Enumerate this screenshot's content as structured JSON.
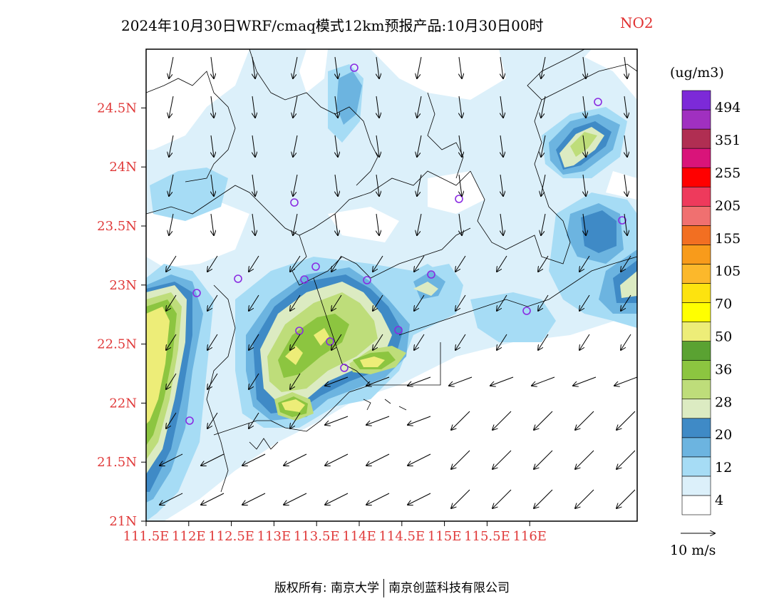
{
  "title": {
    "text": "2024年10月30日WRF/cmaq模式12km预报产品:10月30日00时",
    "species": "NO2"
  },
  "axes": {
    "x_ticks": [
      "111.5E",
      "112E",
      "112.5E",
      "113E",
      "113.5E",
      "114E",
      "114.5E",
      "115E",
      "115.5E",
      "116E"
    ],
    "y_ticks": [
      "21N",
      "21.5N",
      "22N",
      "22.5N",
      "23N",
      "23.5N",
      "24N",
      "24.5N"
    ]
  },
  "colorbar": {
    "unit": "(ug/m3)",
    "labels": [
      "4",
      "12",
      "20",
      "28",
      "36",
      "50",
      "70",
      "105",
      "155",
      "205",
      "255",
      "351",
      "494"
    ],
    "colors": [
      "#ffffff",
      "#dcf0fa",
      "#a6dcf5",
      "#6cb4e0",
      "#3f8ac6",
      "#dcebc2",
      "#bedd7a",
      "#8cc540",
      "#5aa232",
      "#eded78",
      "#ffff00",
      "#fde30f",
      "#fcb82b",
      "#f89b1b",
      "#f26f22",
      "#f07070",
      "#ee3a5c",
      "#ff0000",
      "#d9147a",
      "#b02e52",
      "#a030c0",
      "#7c2ad8"
    ]
  },
  "wind_legend": {
    "label": "10  m/s"
  },
  "footer": {
    "left": "版权所有: 南京大学",
    "right": "南京创蓝科技有限公司"
  }
}
